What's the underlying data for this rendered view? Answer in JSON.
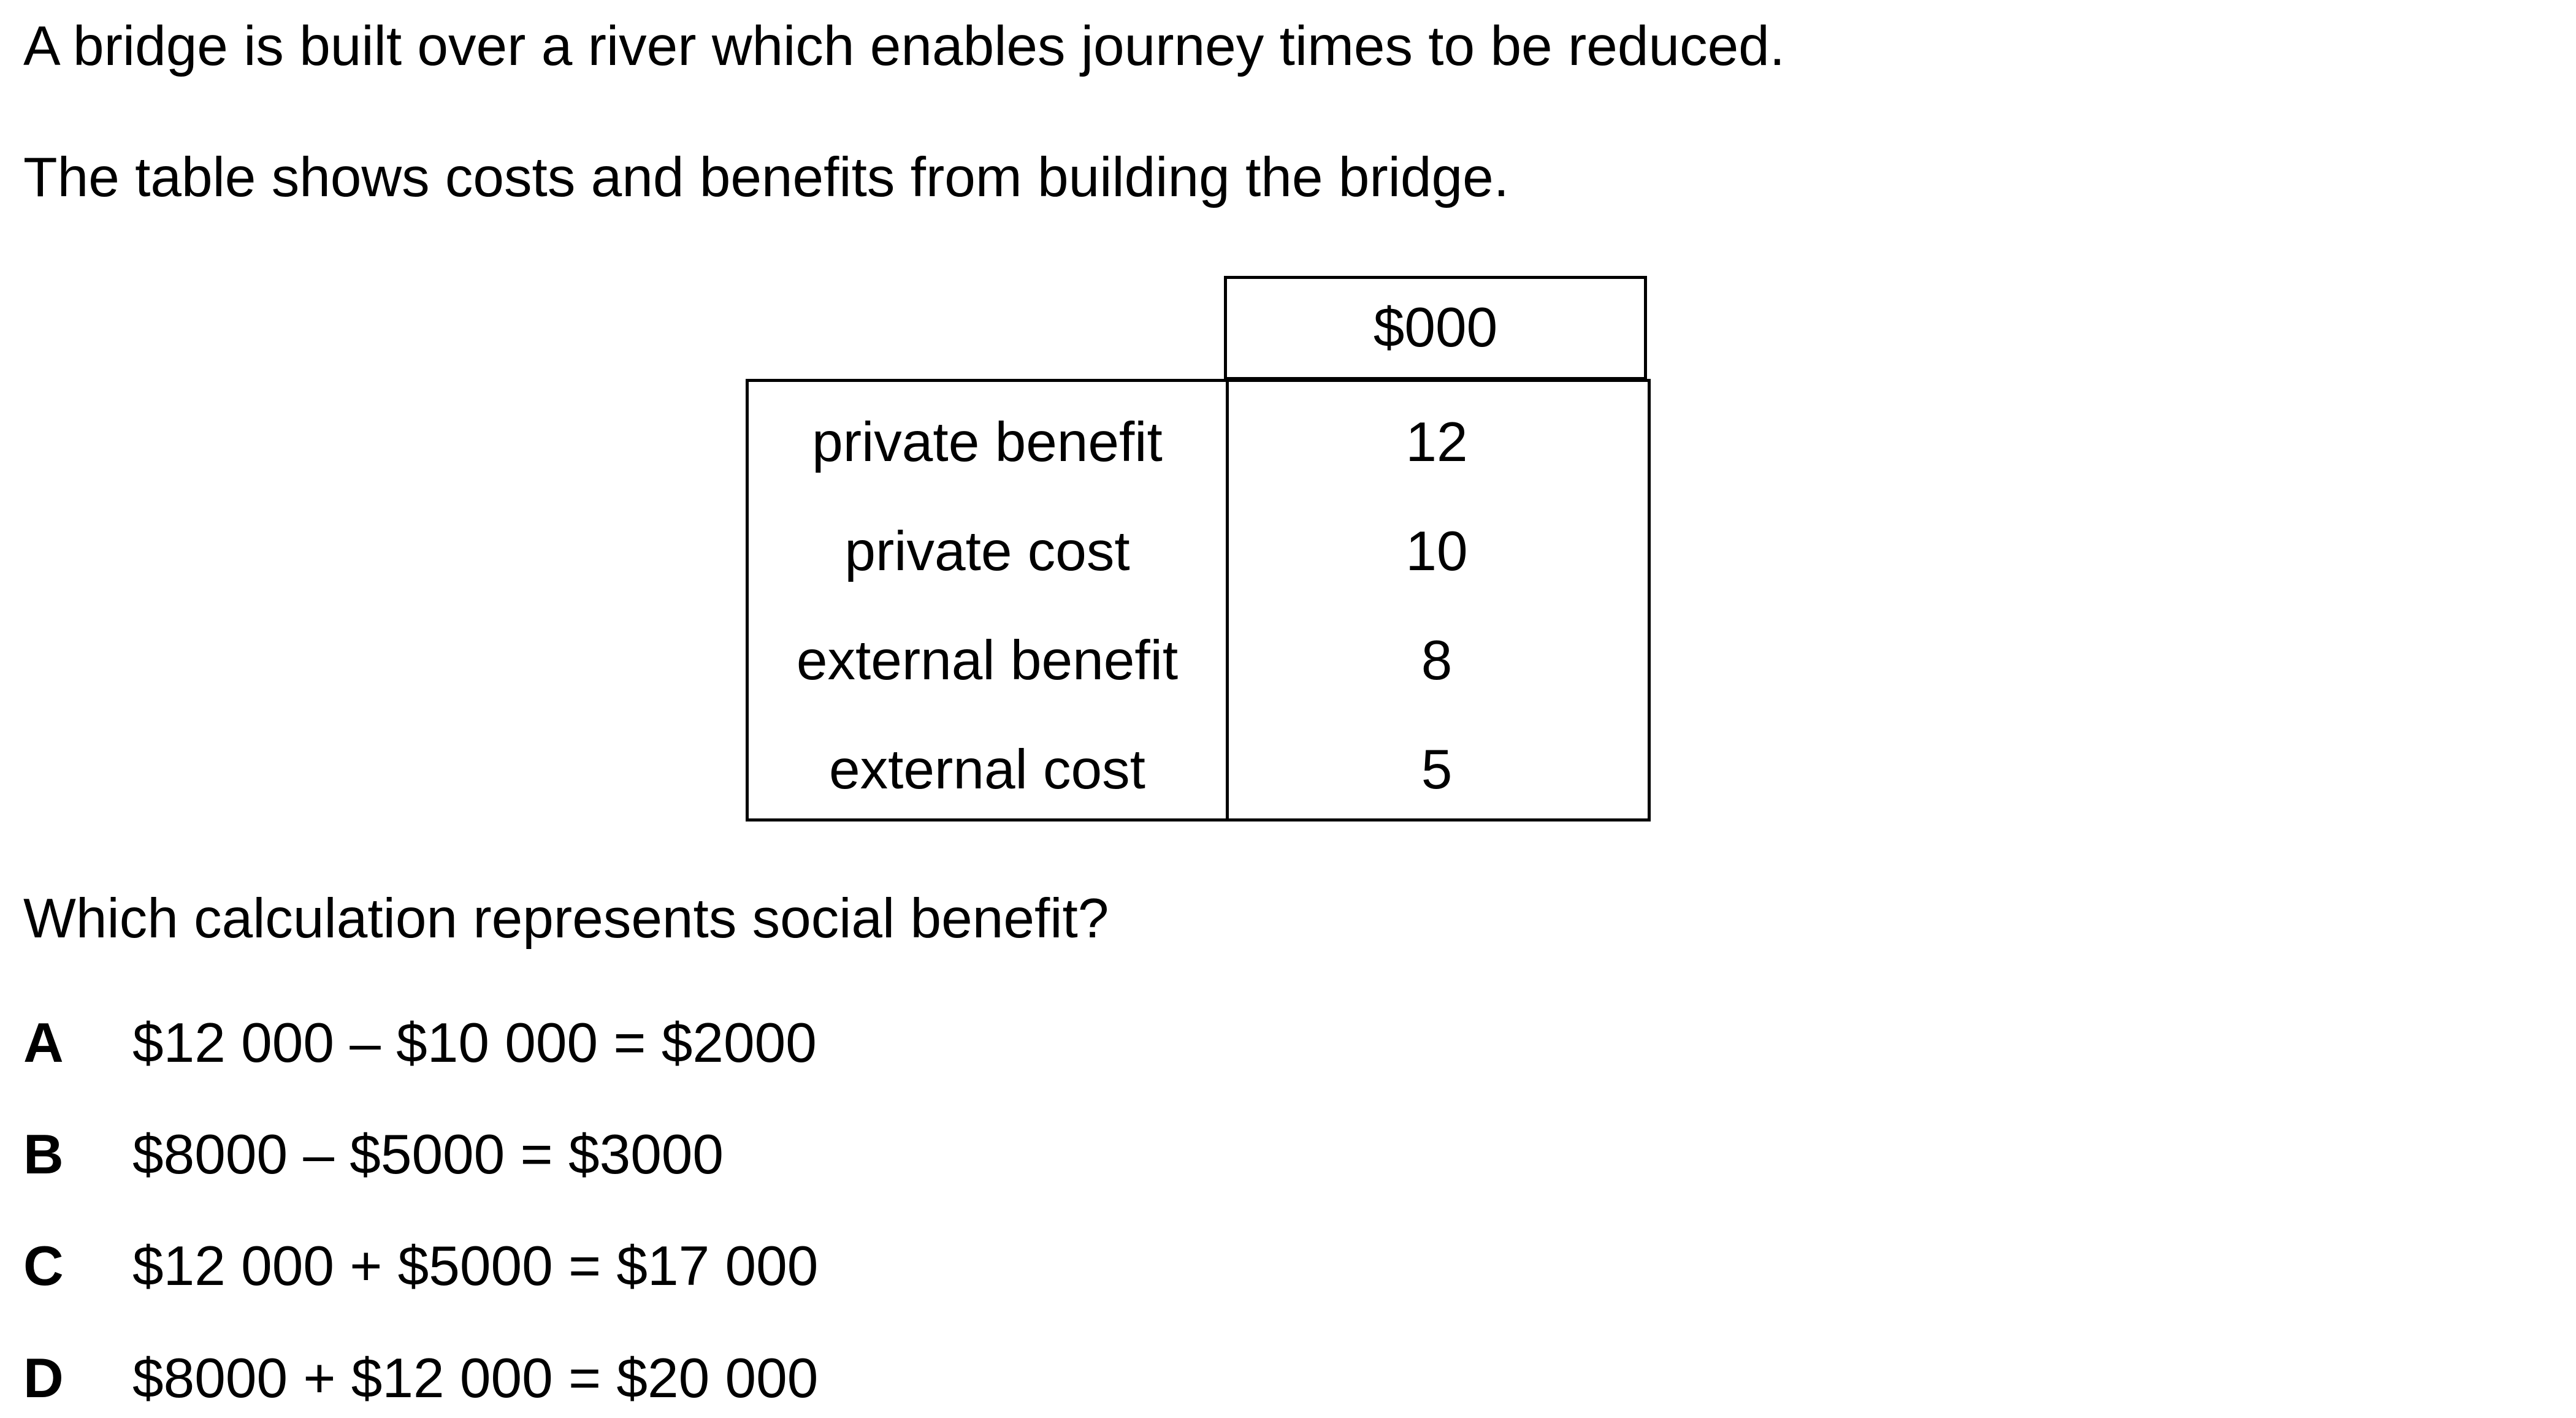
{
  "intro": {
    "line1": "A bridge is built over a river which enables journey times to be reduced.",
    "line2": "The table shows costs and benefits from building the bridge."
  },
  "table": {
    "header": "$000",
    "rows": [
      {
        "label": "private benefit",
        "value": "12"
      },
      {
        "label": "private cost",
        "value": "10"
      },
      {
        "label": "external benefit",
        "value": "8"
      },
      {
        "label": "external cost",
        "value": "5"
      }
    ]
  },
  "question": "Which calculation represents social benefit?",
  "options": [
    {
      "letter": "A",
      "text": "$12 000 – $10 000 = $2000"
    },
    {
      "letter": "B",
      "text": "$8000 – $5000 = $3000"
    },
    {
      "letter": "C",
      "text": "$12 000 + $5000 = $17 000"
    },
    {
      "letter": "D",
      "text": "$8000 + $12 000 = $20 000"
    }
  ]
}
